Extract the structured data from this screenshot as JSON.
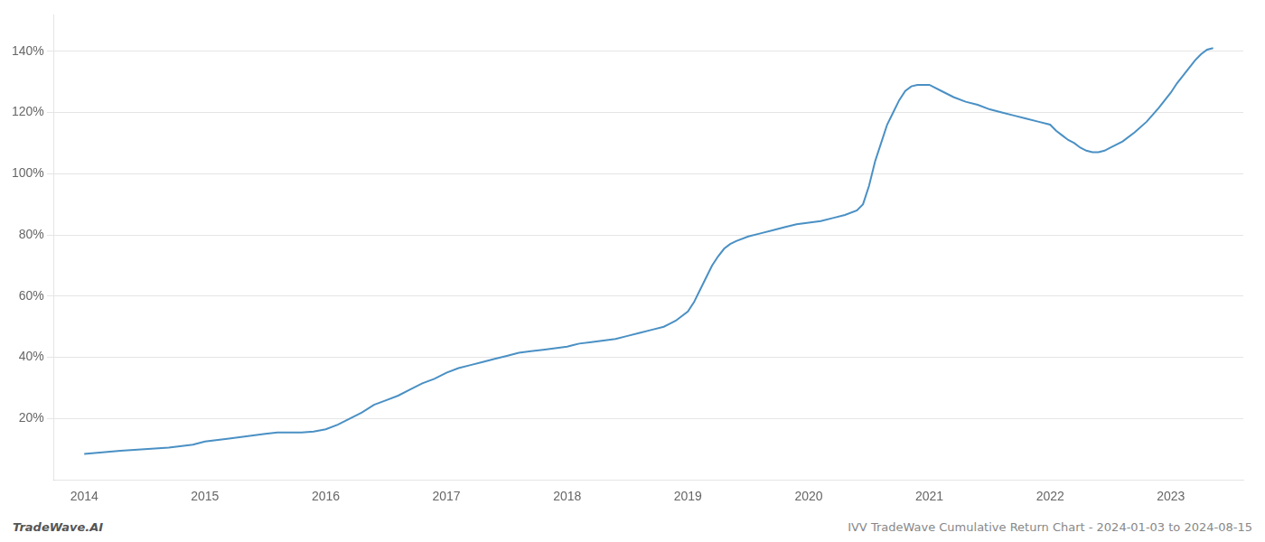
{
  "chart_data": {
    "type": "line",
    "color": "#4a90c4",
    "x": [
      2014.0,
      2014.15,
      2014.3,
      2014.5,
      2014.7,
      2014.9,
      2015.0,
      2015.2,
      2015.4,
      2015.5,
      2015.6,
      2015.7,
      2015.8,
      2015.9,
      2016.0,
      2016.1,
      2016.2,
      2016.3,
      2016.4,
      2016.5,
      2016.6,
      2016.7,
      2016.8,
      2016.9,
      2017.0,
      2017.1,
      2017.2,
      2017.3,
      2017.4,
      2017.5,
      2017.6,
      2017.7,
      2017.8,
      2017.9,
      2018.0,
      2018.05,
      2018.1,
      2018.2,
      2018.3,
      2018.4,
      2018.5,
      2018.6,
      2018.7,
      2018.8,
      2018.85,
      2018.9,
      2019.0,
      2019.05,
      2019.1,
      2019.15,
      2019.2,
      2019.25,
      2019.3,
      2019.35,
      2019.4,
      2019.5,
      2019.6,
      2019.7,
      2019.8,
      2019.9,
      2020.0,
      2020.1,
      2020.2,
      2020.3,
      2020.4,
      2020.45,
      2020.5,
      2020.55,
      2020.6,
      2020.65,
      2020.7,
      2020.75,
      2020.8,
      2020.85,
      2020.9,
      2021.0,
      2021.1,
      2021.2,
      2021.3,
      2021.4,
      2021.5,
      2021.6,
      2021.7,
      2021.8,
      2021.9,
      2022.0,
      2022.05,
      2022.1,
      2022.15,
      2022.2,
      2022.25,
      2022.3,
      2022.35,
      2022.4,
      2022.45,
      2022.5,
      2022.6,
      2022.7,
      2022.8,
      2022.9,
      2023.0,
      2023.05,
      2023.1,
      2023.15,
      2023.2,
      2023.25,
      2023.3,
      2023.35
    ],
    "values": [
      8.5,
      9.0,
      9.5,
      10.0,
      10.5,
      11.5,
      12.5,
      13.5,
      14.5,
      15.0,
      15.5,
      15.5,
      15.5,
      15.8,
      16.5,
      18.0,
      20.0,
      22.0,
      24.5,
      26.0,
      27.5,
      29.5,
      31.5,
      33.0,
      35.0,
      36.5,
      37.5,
      38.5,
      39.5,
      40.5,
      41.5,
      42.0,
      42.5,
      43.0,
      43.5,
      44.0,
      44.5,
      45.0,
      45.5,
      46.0,
      47.0,
      48.0,
      49.0,
      50.0,
      51.0,
      52.0,
      55.0,
      58.0,
      62.0,
      66.0,
      70.0,
      73.0,
      75.5,
      77.0,
      78.0,
      79.5,
      80.5,
      81.5,
      82.5,
      83.5,
      84.0,
      84.5,
      85.5,
      86.5,
      88.0,
      90.0,
      96.0,
      104.0,
      110.0,
      116.0,
      120.0,
      124.0,
      127.0,
      128.5,
      129.0,
      129.0,
      127.0,
      125.0,
      123.5,
      122.5,
      121.0,
      120.0,
      119.0,
      118.0,
      117.0,
      116.0,
      114.0,
      112.5,
      111.0,
      110.0,
      108.5,
      107.5,
      107.0,
      107.0,
      107.5,
      108.5,
      110.5,
      113.5,
      117.0,
      121.5,
      126.5,
      129.5,
      132.0,
      134.5,
      137.0,
      139.0,
      140.5,
      141.0
    ],
    "xlim": [
      2013.75,
      2023.6
    ],
    "xticks": [
      2014,
      2015,
      2016,
      2017,
      2018,
      2019,
      2020,
      2021,
      2022,
      2023
    ],
    "ylim": [
      0,
      152
    ],
    "yticks": [
      {
        "value": 20,
        "label": "20%"
      },
      {
        "value": 40,
        "label": "40%"
      },
      {
        "value": 60,
        "label": "60%"
      },
      {
        "value": 80,
        "label": "80%"
      },
      {
        "value": 100,
        "label": "100%"
      },
      {
        "value": 120,
        "label": "120%"
      },
      {
        "value": 140,
        "label": "140%"
      }
    ],
    "grid": "y",
    "annotations": [
      "TradeWave.AI",
      "IVV TradeWave Cumulative Return Chart - 2024-01-03 to 2024-08-15"
    ]
  }
}
